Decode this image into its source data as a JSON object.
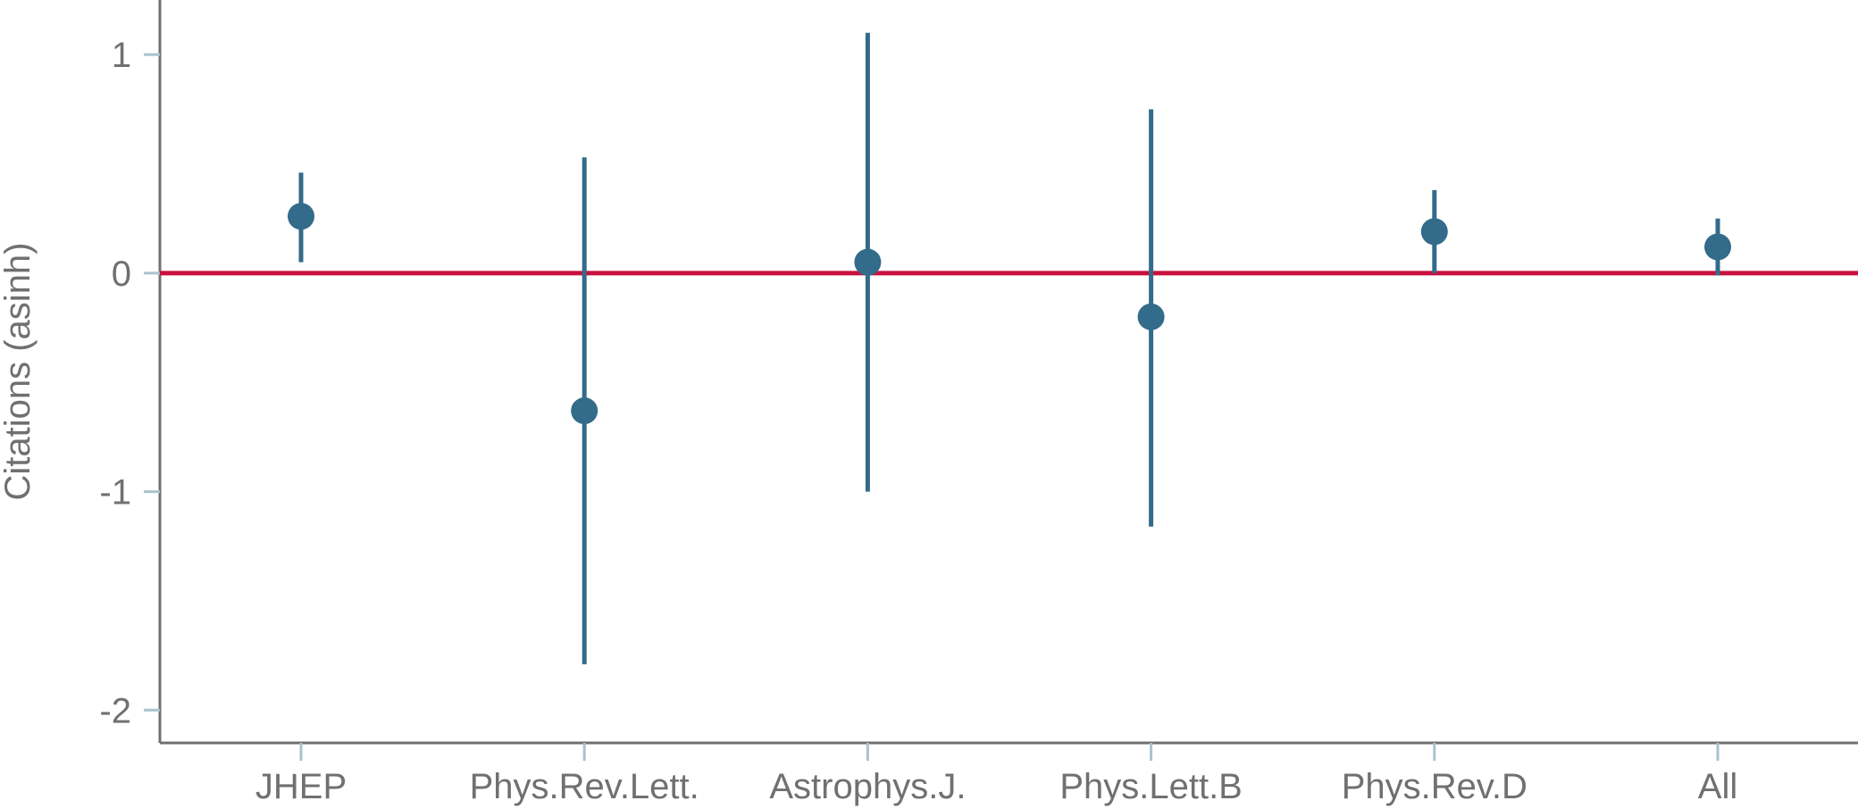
{
  "chart_data": {
    "type": "scatter",
    "ylabel": "Citations (asinh)",
    "xlabel": "",
    "title": "",
    "ylim": [
      -2.15,
      1.25
    ],
    "yticks": [
      1,
      0,
      -1,
      -2
    ],
    "ytick_labels": [
      "1",
      "0",
      "-1",
      "-2"
    ],
    "reference_line": 0,
    "categories": [
      "JHEP",
      "Phys.Rev.Lett.",
      "Astrophys.J.",
      "Phys.Lett.B",
      "Phys.Rev.D",
      "All"
    ],
    "series": [
      {
        "estimates": [
          0.26,
          -0.63,
          0.05,
          -0.2,
          0.19,
          0.12
        ],
        "ci_low": [
          0.05,
          -1.79,
          -1.0,
          -1.16,
          0.0,
          -0.01
        ],
        "ci_high": [
          0.46,
          0.53,
          1.1,
          0.75,
          0.38,
          0.25
        ]
      }
    ],
    "colors": {
      "points": "#336b8a",
      "reference_line": "#c8103e",
      "axis": "#707070",
      "ticks": "#a9c3cc",
      "text": "#707070"
    },
    "grid": false
  }
}
